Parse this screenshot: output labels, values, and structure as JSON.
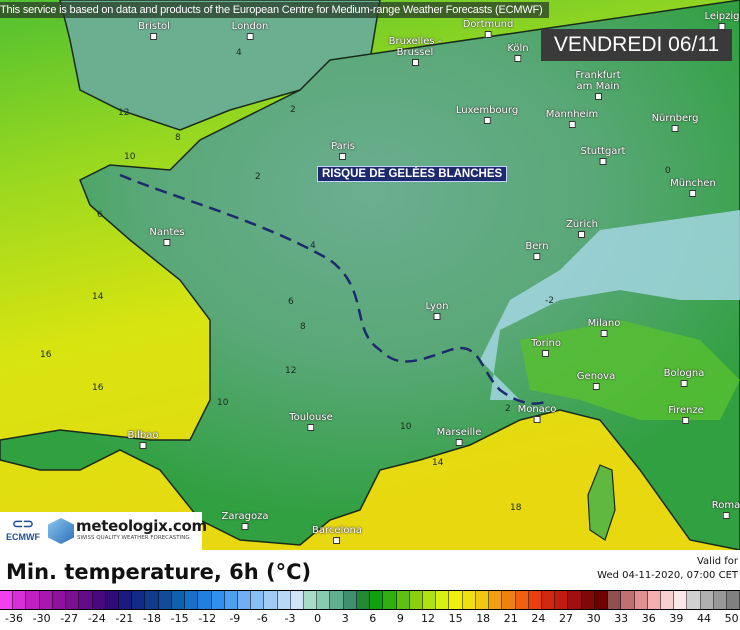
{
  "attribution": "This service is based on data and products of the European Centre for Medium-range Weather Forecasts (ECMWF)",
  "date_label": "VENDREDI 06/11",
  "annotation": "RISQUE DE GELÉES BLANCHES",
  "cities": [
    "Bristol",
    "London",
    "Dortmund",
    "Leipzig",
    "Bruxelles - Brussel",
    "Köln",
    "Frankfurt am Main",
    "Luxembourg",
    "Mannheim",
    "Nürnberg",
    "Paris",
    "Stuttgart",
    "München",
    "Nantes",
    "Zürich",
    "Bern",
    "Lyon",
    "Milano",
    "Torino",
    "Genova",
    "Bologna",
    "Firenze",
    "Monaco",
    "Toulouse",
    "Marseille",
    "Bilbao",
    "Zaragoza",
    "Barcelona",
    "Roma"
  ],
  "isolines": [
    "4",
    "2",
    "10",
    "12",
    "8",
    "6",
    "14",
    "16",
    "4",
    "2",
    "0",
    "-2",
    "12",
    "10",
    "14",
    "18",
    "16",
    "2",
    "6",
    "8",
    "10"
  ],
  "logos": {
    "ecmwf": "ECMWF",
    "meteologix": "meteologix.com",
    "meteologix_tagline": "SWISS QUALITY WEATHER FORECASTING"
  },
  "title": "Min. temperature, 6h (°C)",
  "valid_label": "Valid for",
  "valid_time": "Wed 04-11-2020, 07:00 CET",
  "legend": {
    "ticks": [
      "-36",
      "-30",
      "-27",
      "-24",
      "-21",
      "-18",
      "-15",
      "-12",
      "-9",
      "-6",
      "-3",
      "0",
      "3",
      "6",
      "9",
      "12",
      "15",
      "18",
      "21",
      "24",
      "27",
      "30",
      "33",
      "36",
      "39",
      "44",
      "50"
    ],
    "colors": [
      "#f040f0",
      "#d830d8",
      "#c020c0",
      "#a818b0",
      "#9010a0",
      "#781090",
      "#600c88",
      "#4a0880",
      "#300a78",
      "#1a1a80",
      "#102c88",
      "#103c90",
      "#104c9a",
      "#1060b0",
      "#1870c8",
      "#2080e0",
      "#3090f0",
      "#50a0f0",
      "#70b0f0",
      "#88c0f4",
      "#a0ccf4",
      "#b8d8f6",
      "#d0e4f8",
      "#a8dcc8",
      "#88ccb0",
      "#60b090",
      "#409070",
      "#208a30",
      "#10a010",
      "#30b010",
      "#60c010",
      "#88d010",
      "#b0e010",
      "#d8f010",
      "#f0f010",
      "#f0e010",
      "#f0c810",
      "#f0a010",
      "#f08010",
      "#f06010",
      "#e84010",
      "#d02810",
      "#c01c10",
      "#a01010",
      "#800808",
      "#700000",
      "#905050",
      "#c07070",
      "#e09090",
      "#f4b0b0",
      "#f8d0d0",
      "#fce8e8",
      "#d0d0d0",
      "#b0b0b0",
      "#989898",
      "#808080"
    ]
  },
  "colors": {
    "frost_line": "#1e2a6e",
    "sea_west": "#c8e020",
    "sea_south": "#f0e010",
    "land_cool": "#5aa888"
  }
}
